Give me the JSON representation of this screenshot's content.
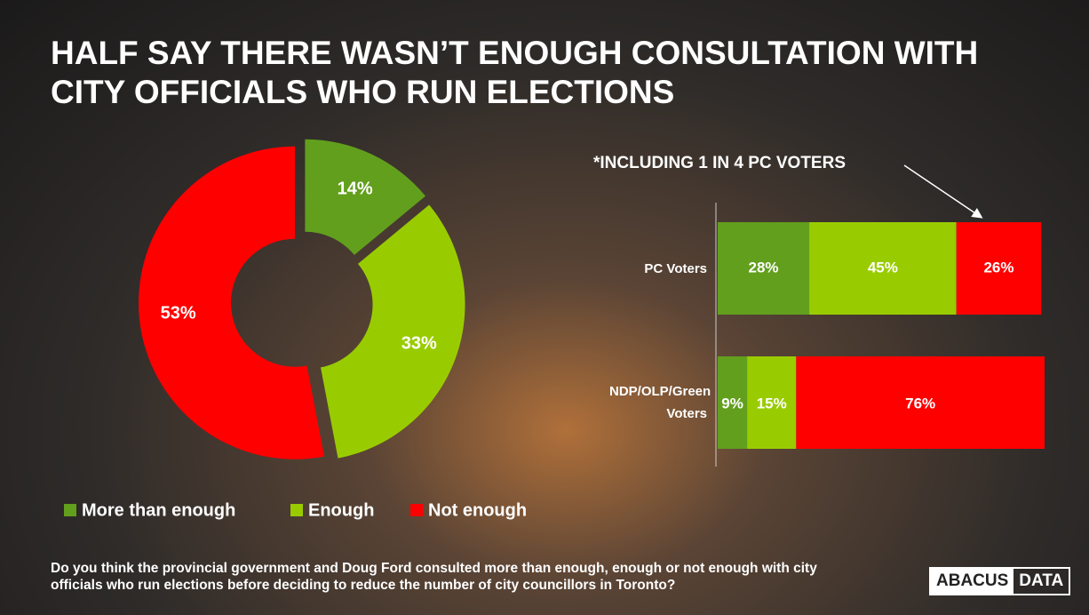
{
  "title": "HALF SAY THERE WASN’T ENOUGH CONSULTATION WITH CITY OFFICIALS WHO RUN ELECTIONS",
  "chart_data": [
    {
      "type": "pie",
      "categories": [
        "More than enough",
        "Enough",
        "Not enough"
      ],
      "values": [
        14,
        33,
        53
      ],
      "value_labels": [
        "14%",
        "33%",
        "53%"
      ],
      "colors": [
        "#629f1d",
        "#99cc00",
        "#ff0000"
      ]
    },
    {
      "type": "bar",
      "orientation": "horizontal",
      "stacked": true,
      "annotation": "*INCLUDING 1 IN 4 PC VOTERS",
      "categories": [
        "PC Voters",
        "NDP/OLP/Green Voters"
      ],
      "xlim": [
        0,
        100
      ],
      "series": [
        {
          "color": "#629f1d",
          "values": [
            28,
            9
          ],
          "value_labels": [
            "28%",
            "9%"
          ]
        },
        {
          "color": "#99cc00",
          "values": [
            45,
            15
          ],
          "value_labels": [
            "45%",
            "15%"
          ]
        },
        {
          "color": "#ff0000",
          "values": [
            26,
            76
          ],
          "value_labels": [
            "26%",
            "76%"
          ]
        }
      ]
    }
  ],
  "question": "Do you think the provincial government and Doug Ford consulted more than enough, enough or not enough with city officials who run elections before deciding to reduce the number of city councillors in Toronto?",
  "logo": {
    "left": "ABACUS",
    "right": "DATA"
  }
}
